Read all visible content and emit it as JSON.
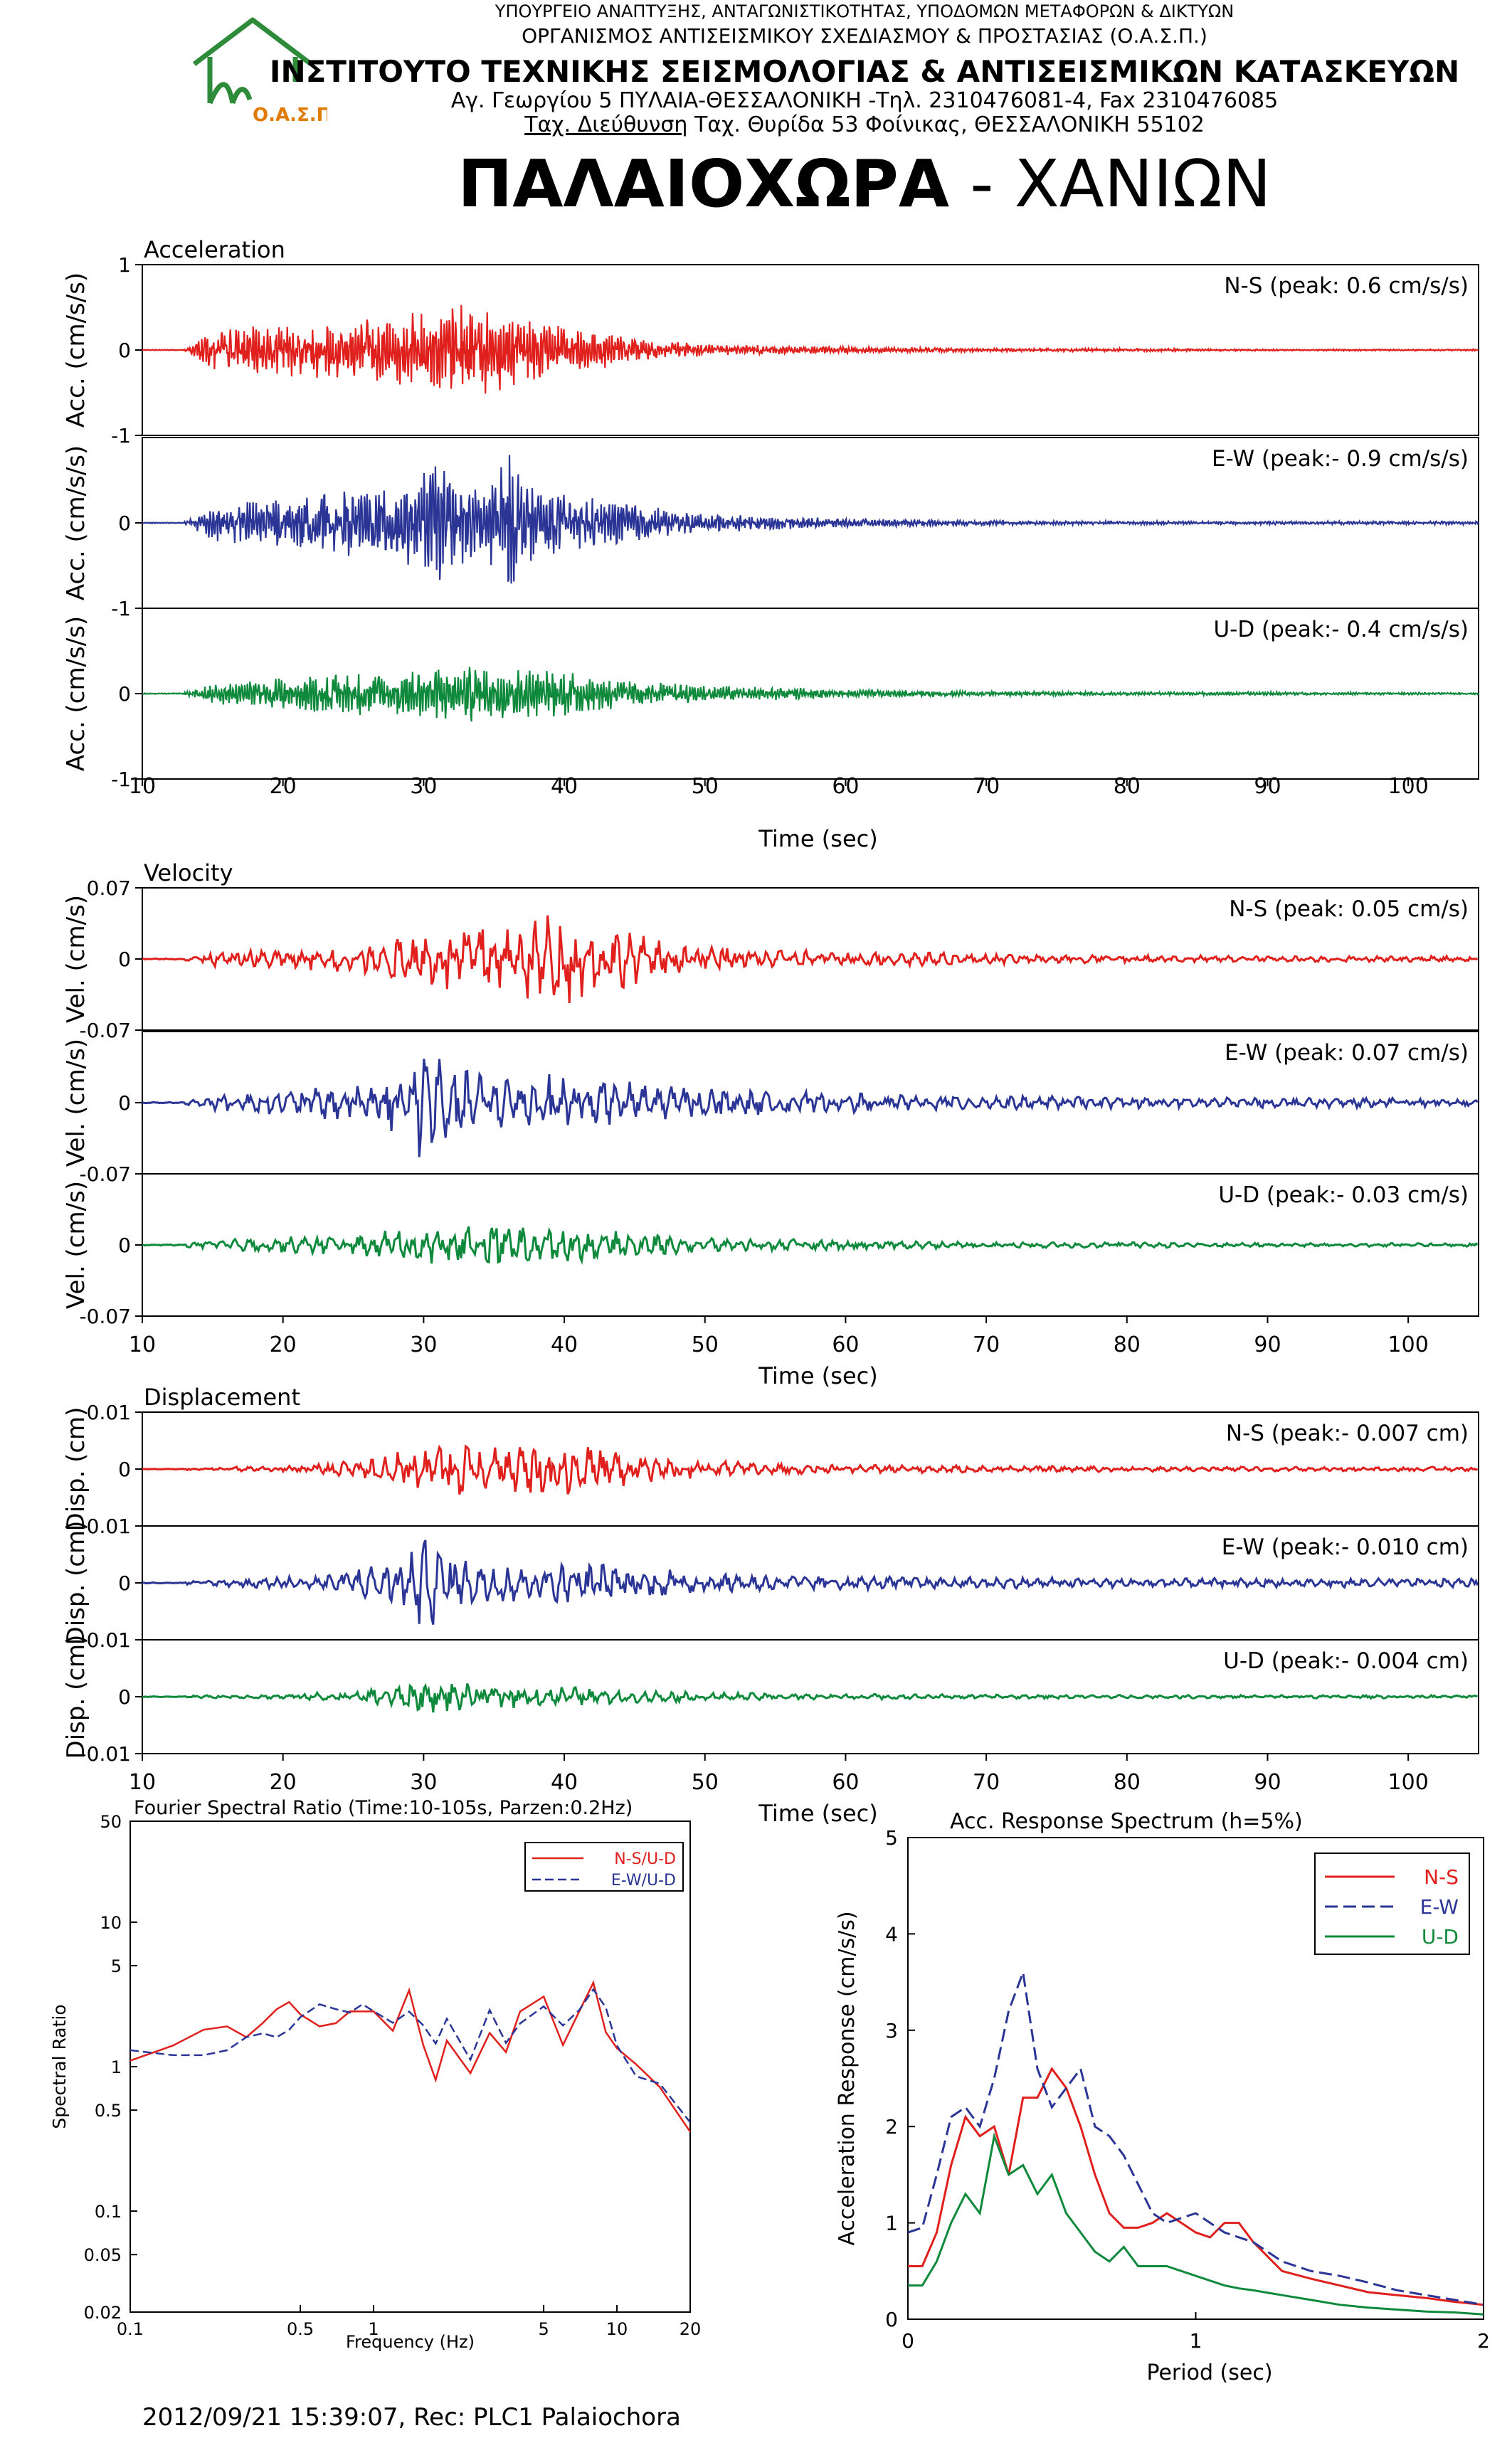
{
  "header": {
    "line1": "ΥΠΟΥΡΓΕΙΟ ΑΝΑΠΤΥΞΗΣ, ΑΝΤΑΓΩΝΙΣΤΙΚΟΤΗΤΑΣ, ΥΠΟΔΟΜΩΝ ΜΕΤΑΦΟΡΩΝ & ΔΙΚΤΥΩΝ",
    "line2": "ΟΡΓΑΝΙΣΜΟΣ ΑΝΤΙΣΕΙΣΜΙΚΟΥ ΣΧΕΔΙΑΣΜΟΥ & ΠΡΟΣΤΑΣΙΑΣ (Ο.Α.Σ.Π.)",
    "line3": "ΙΝΣΤΙΤΟΥΤΟ ΤΕΧΝΙΚΗΣ ΣΕΙΣΜΟΛΟΓΙΑΣ & ΑΝΤΙΣΕΙΣΜΙΚΩΝ ΚΑΤΑΣΚΕΥΩΝ",
    "line4": "Αγ. Γεωργίου 5 ΠΥΛΑΙΑ-ΘΕΣΣΑΛΟΝΙΚΗ -Τηλ. 2310476081-4,  Fax 2310476085",
    "line5_underlined": "Ταχ. Διεύθυνση",
    "line5_rest": " Ταχ. Θυρίδα 53 Φοίνικας, ΘΕΣΣΑΛΟΝΙΚΗ 55102",
    "logo_text": "Ο.Α.Σ.Π.",
    "logo_color": "#2e8b3a",
    "logo_text_color": "#e07b00"
  },
  "title": {
    "bold": "ΠΑΛΑΙΟΧΩΡΑ",
    "rest": " - ΧΑΝΙΩΝ"
  },
  "colors": {
    "ns": "#e0201c",
    "ew": "#2a3596",
    "ud": "#0f8a3c",
    "axis": "#000000"
  },
  "chart_data": [
    {
      "type": "line",
      "title": "Acceleration",
      "xlabel": "Time (sec)",
      "xlim": [
        10,
        105
      ],
      "xticks": [
        "10",
        "20",
        "30",
        "40",
        "50",
        "60",
        "70",
        "80",
        "90",
        "100"
      ],
      "ylabel": "Acc. (cm/s/s)",
      "ylim": [
        -1,
        1
      ],
      "yticks": [
        "1",
        "0",
        "-1"
      ],
      "series": [
        {
          "name": "N-S",
          "label": "N-S (peak: 0.6 cm/s/s)",
          "peak": 0.6,
          "envelope_t": [
            13,
            15,
            20,
            25,
            30,
            33,
            35,
            38,
            42,
            46,
            50,
            55,
            60,
            65,
            70,
            80,
            90,
            105
          ],
          "envelope_a": [
            0.02,
            0.25,
            0.3,
            0.38,
            0.45,
            0.55,
            0.5,
            0.35,
            0.25,
            0.12,
            0.08,
            0.05,
            0.04,
            0.03,
            0.02,
            0.02,
            0.01,
            0.01
          ]
        },
        {
          "name": "E-W",
          "label": "E-W (peak:- 0.9 cm/s/s)",
          "peak": -0.9,
          "envelope_t": [
            13,
            15,
            20,
            25,
            29,
            31,
            34,
            36,
            38,
            42,
            46,
            50,
            55,
            60,
            65,
            70,
            80,
            90,
            105
          ],
          "envelope_a": [
            0.02,
            0.22,
            0.3,
            0.4,
            0.55,
            0.7,
            0.5,
            0.85,
            0.4,
            0.3,
            0.2,
            0.12,
            0.08,
            0.05,
            0.04,
            0.03,
            0.02,
            0.02,
            0.02
          ]
        },
        {
          "name": "U-D",
          "label": "U-D (peak:- 0.4 cm/s/s)",
          "peak": -0.4,
          "envelope_t": [
            13,
            15,
            20,
            25,
            30,
            33,
            36,
            40,
            45,
            50,
            55,
            60,
            65,
            70,
            80,
            90,
            105
          ],
          "envelope_a": [
            0.02,
            0.12,
            0.2,
            0.25,
            0.3,
            0.35,
            0.3,
            0.28,
            0.15,
            0.1,
            0.08,
            0.05,
            0.04,
            0.03,
            0.02,
            0.02,
            0.01
          ]
        }
      ]
    },
    {
      "type": "line",
      "title": "Velocity",
      "xlabel": "Time (sec)",
      "xlim": [
        10,
        105
      ],
      "xticks": [
        "10",
        "20",
        "30",
        "40",
        "50",
        "60",
        "70",
        "80",
        "90",
        "100"
      ],
      "ylabel": "Vel. (cm/s)",
      "ylim": [
        -0.07,
        0.07
      ],
      "yticks": [
        "0.07",
        "0",
        "-0.07"
      ],
      "series": [
        {
          "name": "N-S",
          "label": "N-S (peak: 0.05 cm/s)",
          "peak": 0.05,
          "envelope_t": [
            13,
            15,
            20,
            25,
            30,
            33,
            35,
            38,
            40,
            45,
            50,
            55,
            60,
            65,
            70,
            80,
            90,
            105
          ],
          "envelope_a": [
            0.002,
            0.008,
            0.01,
            0.014,
            0.028,
            0.04,
            0.035,
            0.045,
            0.05,
            0.025,
            0.015,
            0.01,
            0.008,
            0.007,
            0.005,
            0.004,
            0.003,
            0.003
          ]
        },
        {
          "name": "E-W",
          "label": "E-W (peak: 0.07 cm/s)",
          "peak": 0.07,
          "envelope_t": [
            13,
            15,
            20,
            25,
            29,
            30,
            32,
            35,
            38,
            42,
            46,
            50,
            55,
            60,
            65,
            70,
            80,
            90,
            105
          ],
          "envelope_a": [
            0.002,
            0.008,
            0.012,
            0.02,
            0.035,
            0.065,
            0.035,
            0.03,
            0.03,
            0.025,
            0.02,
            0.015,
            0.012,
            0.01,
            0.008,
            0.007,
            0.006,
            0.005,
            0.005
          ]
        },
        {
          "name": "U-D",
          "label": "U-D (peak:- 0.03 cm/s)",
          "peak": -0.03,
          "envelope_t": [
            13,
            15,
            20,
            25,
            30,
            33,
            36,
            40,
            45,
            50,
            55,
            60,
            65,
            70,
            80,
            90,
            105
          ],
          "envelope_a": [
            0.002,
            0.005,
            0.008,
            0.012,
            0.02,
            0.024,
            0.022,
            0.018,
            0.012,
            0.008,
            0.006,
            0.005,
            0.004,
            0.003,
            0.003,
            0.002,
            0.002
          ]
        }
      ]
    },
    {
      "type": "line",
      "title": "Displacement",
      "xlabel": "Time (sec)",
      "xlim": [
        10,
        105
      ],
      "xticks": [
        "10",
        "20",
        "30",
        "40",
        "50",
        "60",
        "70",
        "80",
        "90",
        "100"
      ],
      "ylabel": "Disp. (cm)",
      "ylim": [
        -0.01,
        0.01
      ],
      "yticks": [
        "0.01",
        "0",
        "-0.01"
      ],
      "series": [
        {
          "name": "N-S",
          "label": "N-S (peak:- 0.007 cm)",
          "peak": -0.007,
          "envelope_t": [
            13,
            20,
            25,
            28,
            30,
            33,
            36,
            39,
            42,
            46,
            50,
            55,
            60,
            70,
            80,
            90,
            105
          ],
          "envelope_a": [
            0.0002,
            0.0006,
            0.0015,
            0.003,
            0.004,
            0.0055,
            0.005,
            0.0065,
            0.004,
            0.0025,
            0.0015,
            0.001,
            0.0008,
            0.0006,
            0.0005,
            0.0004,
            0.0004
          ]
        },
        {
          "name": "E-W",
          "label": "E-W (peak:- 0.010 cm)",
          "peak": -0.01,
          "envelope_t": [
            13,
            18,
            22,
            26,
            29,
            30,
            32,
            35,
            38,
            42,
            46,
            50,
            55,
            60,
            70,
            80,
            90,
            105
          ],
          "envelope_a": [
            0.0003,
            0.001,
            0.0015,
            0.003,
            0.005,
            0.009,
            0.005,
            0.004,
            0.004,
            0.0035,
            0.003,
            0.002,
            0.0015,
            0.0012,
            0.001,
            0.0009,
            0.0008,
            0.0008
          ]
        },
        {
          "name": "U-D",
          "label": "U-D (peak:- 0.004 cm)",
          "peak": -0.004,
          "envelope_t": [
            13,
            20,
            25,
            28,
            30,
            33,
            36,
            40,
            45,
            50,
            55,
            60,
            70,
            80,
            90,
            105
          ],
          "envelope_a": [
            0.0002,
            0.0004,
            0.0012,
            0.002,
            0.003,
            0.0025,
            0.0022,
            0.0018,
            0.0012,
            0.0008,
            0.0006,
            0.0005,
            0.0004,
            0.0003,
            0.0003,
            0.0003
          ]
        }
      ]
    },
    {
      "type": "line",
      "title": "Fourier Spectral Ratio (Time:10-105s, Parzen:0.2Hz)",
      "xlabel": "Frequency (Hz)",
      "ylabel": "Spectral Ratio",
      "xscale": "log",
      "yscale": "log",
      "xlim": [
        0.1,
        20
      ],
      "ylim": [
        0.02,
        50
      ],
      "xticks": [
        "0.1",
        "0.5",
        "1",
        "5",
        "10",
        "20"
      ],
      "yticks": [
        "50",
        "10",
        "5",
        "1",
        "0.5",
        "0.1",
        "0.05",
        "0.02"
      ],
      "legend_position": "top-right",
      "series": [
        {
          "name": "N-S/U-D",
          "x": [
            0.1,
            0.15,
            0.2,
            0.25,
            0.3,
            0.35,
            0.4,
            0.45,
            0.5,
            0.6,
            0.7,
            0.8,
            0.9,
            1.0,
            1.2,
            1.4,
            1.6,
            1.8,
            2.0,
            2.5,
            3,
            3.5,
            4,
            5,
            6,
            7,
            8,
            9,
            10,
            12,
            15,
            20
          ],
          "y": [
            1.1,
            1.4,
            1.8,
            1.9,
            1.6,
            2.0,
            2.5,
            2.8,
            2.3,
            1.9,
            2.0,
            2.4,
            2.6,
            2.1,
            1.6,
            3.1,
            1.6,
            0.9,
            1.6,
            0.8,
            2.0,
            1.2,
            2.3,
            3.0,
            1.5,
            2.2,
            4.0,
            2.0,
            1.5,
            1.0,
            0.7,
            0.4
          ]
        },
        {
          "name": "E-W/U-D",
          "x": [
            0.1,
            0.15,
            0.2,
            0.25,
            0.3,
            0.35,
            0.4,
            0.45,
            0.5,
            0.6,
            0.7,
            0.8,
            0.9,
            1.0,
            1.2,
            1.4,
            1.6,
            1.8,
            2.0,
            2.5,
            3,
            3.5,
            4,
            5,
            6,
            7,
            8,
            9,
            10,
            12,
            15,
            20
          ],
          "y": [
            1.3,
            1.2,
            1.2,
            1.3,
            1.6,
            1.7,
            1.6,
            1.8,
            2.2,
            2.7,
            2.5,
            2.2,
            2.6,
            2.4,
            1.9,
            2.5,
            2.2,
            1.3,
            2.4,
            1.0,
            2.6,
            1.6,
            2.2,
            2.8,
            1.7,
            2.5,
            3.0,
            2.5,
            1.6,
            1.0,
            0.7,
            0.4
          ]
        }
      ]
    },
    {
      "type": "line",
      "title": "Acc. Response Spectrum (h=5%)",
      "xlabel": "Period (sec)",
      "ylabel": "Acceleration Response (cm/s/s)",
      "xlim": [
        0,
        2
      ],
      "ylim": [
        0,
        5
      ],
      "xticks": [
        "0",
        "1",
        "2"
      ],
      "yticks": [
        "0",
        "1",
        "2",
        "3",
        "4",
        "5"
      ],
      "legend_position": "top-right",
      "series": [
        {
          "name": "N-S",
          "x": [
            0,
            0.05,
            0.1,
            0.15,
            0.2,
            0.25,
            0.3,
            0.35,
            0.4,
            0.45,
            0.5,
            0.55,
            0.6,
            0.65,
            0.7,
            0.75,
            0.8,
            0.85,
            0.9,
            0.95,
            1.0,
            1.05,
            1.1,
            1.15,
            1.2,
            1.3,
            1.4,
            1.5,
            1.6,
            1.7,
            1.8,
            1.9,
            2.0
          ],
          "y": [
            0.55,
            0.55,
            0.9,
            1.6,
            2.1,
            1.9,
            2.0,
            1.5,
            2.3,
            2.3,
            2.6,
            2.4,
            2.0,
            1.5,
            1.1,
            0.95,
            0.95,
            1.0,
            1.1,
            1.0,
            0.9,
            0.85,
            1.0,
            1.0,
            0.8,
            0.5,
            0.42,
            0.35,
            0.28,
            0.25,
            0.22,
            0.18,
            0.15
          ]
        },
        {
          "name": "E-W",
          "x": [
            0,
            0.05,
            0.1,
            0.15,
            0.2,
            0.25,
            0.3,
            0.35,
            0.4,
            0.45,
            0.5,
            0.55,
            0.6,
            0.65,
            0.7,
            0.75,
            0.8,
            0.85,
            0.9,
            0.95,
            1.0,
            1.05,
            1.1,
            1.15,
            1.2,
            1.3,
            1.4,
            1.5,
            1.6,
            1.7,
            1.8,
            1.9,
            2.0
          ],
          "y": [
            0.9,
            0.95,
            1.5,
            2.1,
            2.2,
            2.0,
            2.5,
            3.2,
            3.6,
            2.6,
            2.2,
            2.4,
            2.6,
            2.0,
            1.9,
            1.7,
            1.4,
            1.1,
            1.0,
            1.05,
            1.1,
            1.0,
            0.9,
            0.85,
            0.8,
            0.6,
            0.5,
            0.45,
            0.38,
            0.3,
            0.25,
            0.2,
            0.15
          ]
        },
        {
          "name": "U-D",
          "x": [
            0,
            0.05,
            0.1,
            0.15,
            0.2,
            0.25,
            0.3,
            0.35,
            0.4,
            0.45,
            0.5,
            0.55,
            0.6,
            0.65,
            0.7,
            0.75,
            0.8,
            0.85,
            0.9,
            0.95,
            1.0,
            1.05,
            1.1,
            1.15,
            1.2,
            1.3,
            1.4,
            1.5,
            1.6,
            1.7,
            1.8,
            1.9,
            2.0
          ],
          "y": [
            0.35,
            0.35,
            0.6,
            1.0,
            1.3,
            1.1,
            1.9,
            1.5,
            1.6,
            1.3,
            1.5,
            1.1,
            0.9,
            0.7,
            0.6,
            0.75,
            0.55,
            0.55,
            0.55,
            0.5,
            0.45,
            0.4,
            0.35,
            0.32,
            0.3,
            0.25,
            0.2,
            0.15,
            0.12,
            0.1,
            0.08,
            0.07,
            0.05
          ]
        }
      ]
    }
  ],
  "footer": "2012/09/21 15:39:07, Rec: PLC1 Palaiochora"
}
